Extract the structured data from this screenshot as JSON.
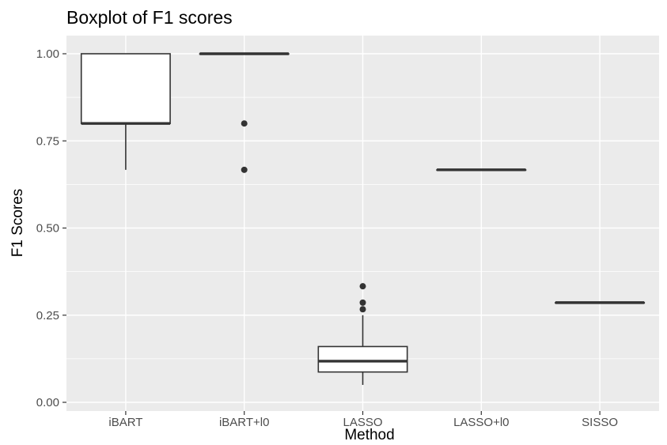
{
  "chart_data": {
    "type": "boxplot",
    "title": "Boxplot of F1 scores",
    "xlabel": "Method",
    "ylabel": "F1 Scores",
    "ylim": [
      0,
      1.03
    ],
    "yticks": [
      0,
      0.25,
      0.5,
      0.75,
      1.0
    ],
    "ytick_labels": [
      "0.00",
      "0.25",
      "0.50",
      "0.75",
      "1.00"
    ],
    "grid": true,
    "categories": [
      "iBART",
      "iBART+l0",
      "LASSO",
      "LASSO+l0",
      "SISSO"
    ],
    "boxes": [
      {
        "category": "iBART",
        "whisker_low": 0.667,
        "q1": 0.8,
        "median": 0.8,
        "q3": 1.0,
        "whisker_high": 1.0,
        "outliers": []
      },
      {
        "category": "iBART+l0",
        "whisker_low": 1.0,
        "q1": 1.0,
        "median": 1.0,
        "q3": 1.0,
        "whisker_high": 1.0,
        "outliers": [
          0.8,
          0.667
        ]
      },
      {
        "category": "LASSO",
        "whisker_low": 0.05,
        "q1": 0.087,
        "median": 0.118,
        "q3": 0.16,
        "whisker_high": 0.25,
        "outliers": [
          0.333,
          0.286,
          0.267
        ]
      },
      {
        "category": "LASSO+l0",
        "whisker_low": 0.667,
        "q1": 0.667,
        "median": 0.667,
        "q3": 0.667,
        "whisker_high": 0.667,
        "outliers": []
      },
      {
        "category": "SISSO",
        "whisker_low": 0.286,
        "q1": 0.286,
        "median": 0.286,
        "q3": 0.286,
        "whisker_high": 0.286,
        "outliers": []
      }
    ],
    "colors": {
      "panel_bg": "#ebebeb",
      "grid": "#ffffff",
      "box_fill": "#ffffff",
      "box_stroke": "#333333",
      "tick_label": "#4d4d4d",
      "text": "#1a1a1a"
    }
  }
}
